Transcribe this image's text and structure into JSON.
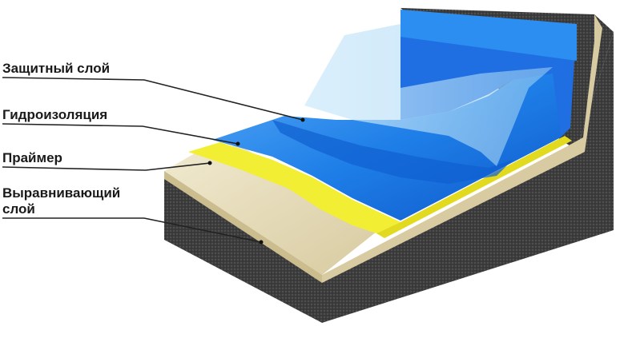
{
  "layers": [
    {
      "id": "protective",
      "label": "Защитный слой",
      "color": "#9fd4f0"
    },
    {
      "id": "waterproofing",
      "label": "Гидроизоляция",
      "color": "#1e78e6"
    },
    {
      "id": "primer",
      "label": "Праймер",
      "color": "#f1ef3a"
    },
    {
      "id": "leveling",
      "label_line1": "Выравнивающий",
      "label_line2": "слой",
      "color": "#e8dcb6"
    }
  ],
  "base": {
    "name": "concrete-base",
    "color": "#3a3a3a"
  }
}
